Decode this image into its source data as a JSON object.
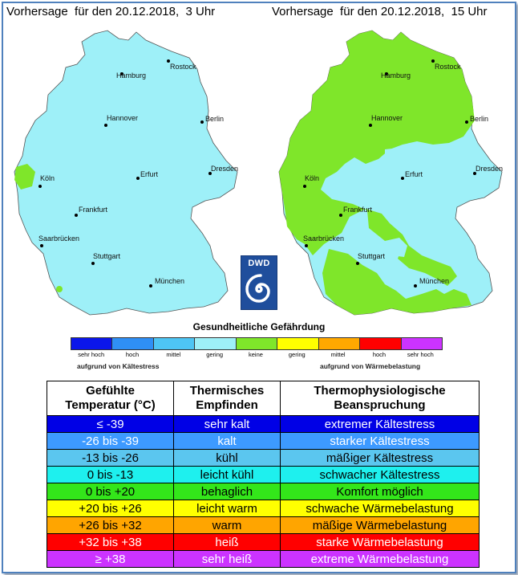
{
  "maps": {
    "left_title": "Vorhersage  für den 20.12.2018,  3 Uhr",
    "right_title": "Vorhersage  für den 20.12.2018,  15 Uhr",
    "cities": [
      "Rostock",
      "Hamburg",
      "Hannover",
      "Berlin",
      "Köln",
      "Erfurt",
      "Dresden",
      "Frankfurt",
      "Saarbrücken",
      "Stuttgart",
      "München"
    ],
    "left_dominant_level": "geringe Gefährdung aufgrund von Kältestress",
    "right_dominant_level": "keine Gefährdung"
  },
  "logo": {
    "text": "DWD"
  },
  "legend": {
    "title": "Gesundheitliche Gefährdung",
    "levels": [
      {
        "label": "sehr hoch",
        "color": "#0b16ea"
      },
      {
        "label": "hoch",
        "color": "#2f8ff5"
      },
      {
        "label": "mittel",
        "color": "#4ec5f4"
      },
      {
        "label": "gering",
        "color": "#9ef0f8"
      },
      {
        "label": "keine",
        "color": "#7fe62a"
      },
      {
        "label": "gering",
        "color": "#ffff00"
      },
      {
        "label": "mittel",
        "color": "#ffa800"
      },
      {
        "label": "hoch",
        "color": "#ff0000"
      },
      {
        "label": "sehr hoch",
        "color": "#cc33ff"
      }
    ],
    "cause_cold": "aufgrund von Kältestress",
    "cause_heat": "aufgrund von Wärmebelastung"
  },
  "table": {
    "headers": [
      "Gefühlte\nTemperatur (°C)",
      "Thermisches\nEmpfinden",
      "Thermophysiologische\nBeanspruchung"
    ],
    "rows": [
      {
        "temp": "≤ -39",
        "feel": "sehr kalt",
        "stress": "extremer Kältestress",
        "color": "#0000e6",
        "text_color": "#ffffff"
      },
      {
        "temp": "-26 bis -39",
        "feel": "kalt",
        "stress": "starker Kältestress",
        "color": "#3d9aff",
        "text_color": "#ffffff"
      },
      {
        "temp": "-13 bis -26",
        "feel": "kühl",
        "stress": "mäßiger Kältestress",
        "color": "#5bc6ef",
        "text_color": "#000000"
      },
      {
        "temp": "0 bis -13",
        "feel": "leicht kühl",
        "stress": "schwacher Kältestress",
        "color": "#1ef0ee",
        "text_color": "#000000"
      },
      {
        "temp": "0 bis +20",
        "feel": "behaglich",
        "stress": "Komfort möglich",
        "color": "#33e61a",
        "text_color": "#000000"
      },
      {
        "temp": "+20 bis +26",
        "feel": "leicht warm",
        "stress": "schwache Wärmebelastung",
        "color": "#ffff00",
        "text_color": "#000000"
      },
      {
        "temp": "+26 bis +32",
        "feel": "warm",
        "stress": "mäßige Wärmebelastung",
        "color": "#ffa500",
        "text_color": "#000000"
      },
      {
        "temp": "+32 bis +38",
        "feel": "heiß",
        "stress": "starke Wärmebelastung",
        "color": "#ff0000",
        "text_color": "#ffffff"
      },
      {
        "temp": "≥ +38",
        "feel": "sehr heiß",
        "stress": "extreme Wärmebelastung",
        "color": "#cc33ff",
        "text_color": "#ffffff"
      }
    ]
  }
}
